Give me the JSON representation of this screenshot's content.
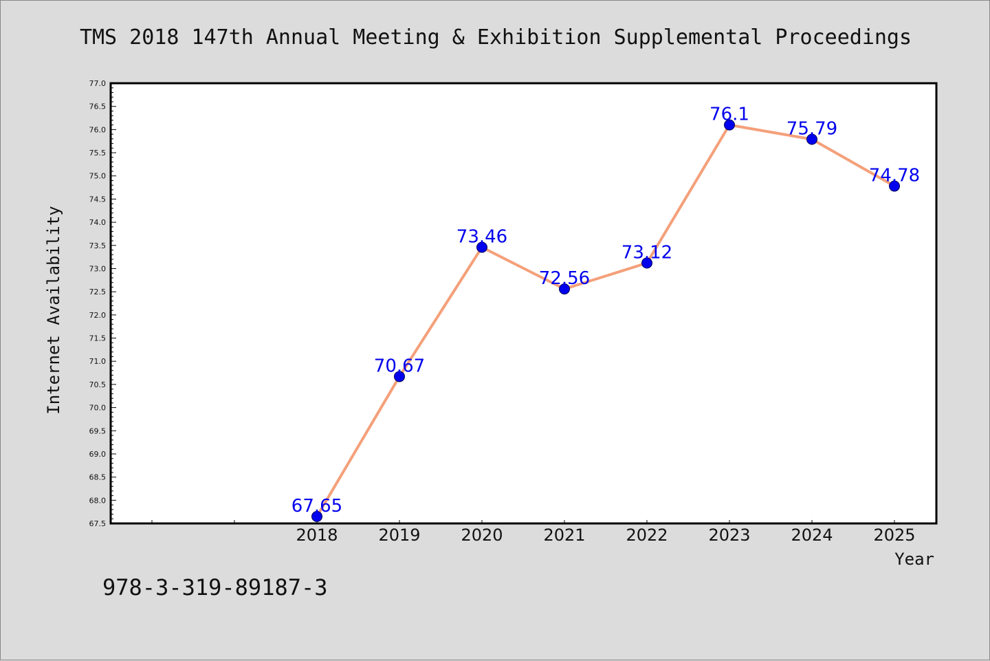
{
  "chart_data": {
    "type": "line",
    "title": "TMS 2018 147th Annual Meeting & Exhibition Supplemental Proceedings",
    "xlabel": "Year",
    "ylabel": "Internet Availability",
    "categories": [
      "2018",
      "2019",
      "2020",
      "2021",
      "2022",
      "2023",
      "2024",
      "2025"
    ],
    "series": [
      {
        "values": [
          67.65,
          70.67,
          73.46,
          72.56,
          73.12,
          76.1,
          75.79,
          74.78
        ],
        "labels": [
          "67.65",
          "70.67",
          "73.46",
          "72.56",
          "73.12",
          "76.1",
          "75.79",
          "74.78"
        ]
      }
    ],
    "ylim": [
      67.5,
      77.0
    ],
    "yticks": [
      "67.5",
      "68.0",
      "68.5",
      "69.0",
      "69.5",
      "70.0",
      "70.5",
      "71.0",
      "71.5",
      "72.0",
      "72.5",
      "73.0",
      "73.5",
      "74.0",
      "74.5",
      "75.0",
      "75.5",
      "76.0",
      "76.5",
      "77.0"
    ],
    "grid": false,
    "line_color": "#f4a07a",
    "marker_color": "#0000ee",
    "label_color": "#0000ee"
  },
  "footer": {
    "isbn": "978-3-319-89187-3"
  }
}
